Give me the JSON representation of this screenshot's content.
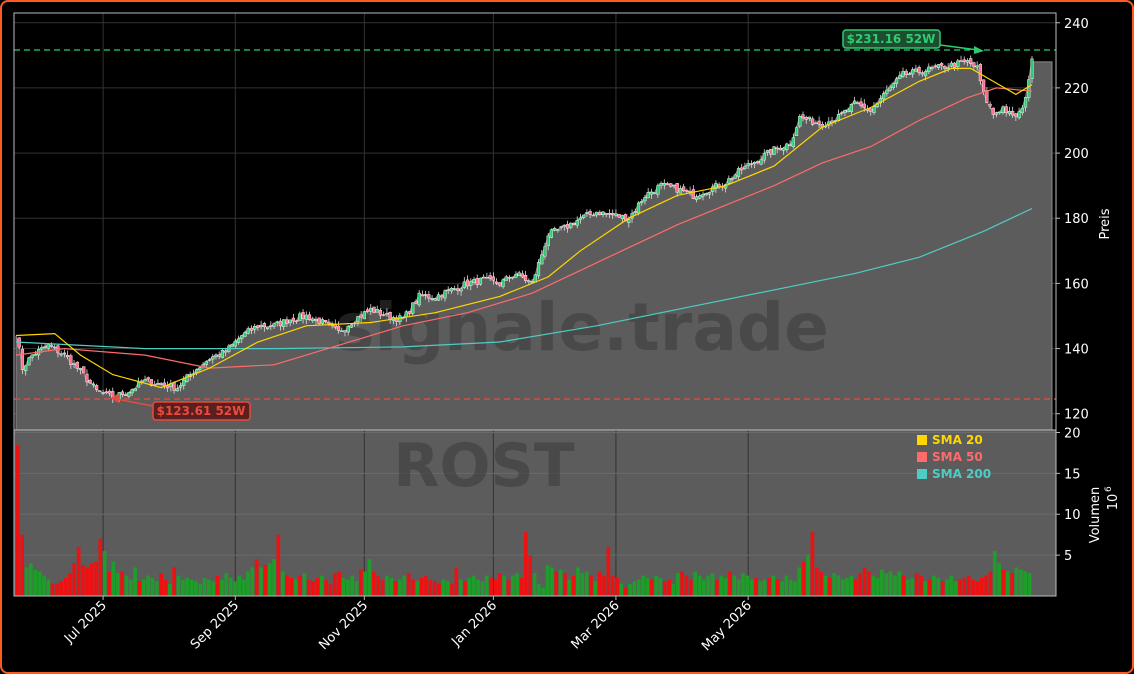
{
  "chart_data": {
    "type": "candlestick",
    "ticker": "ROST",
    "watermark": "signale.trade",
    "ylabel_price": "Preis",
    "ylabel_volume": "Volumen",
    "volume_unit_exp": "6",
    "price_ylim": [
      115,
      243
    ],
    "price_ticks": [
      "120",
      "140",
      "160",
      "180",
      "200",
      "220",
      "240"
    ],
    "volume_ylim": [
      0,
      20
    ],
    "volume_ticks": [
      "5",
      "10",
      "15",
      "20"
    ],
    "x_ticks": [
      "Jul 2025",
      "Sep 2025",
      "Nov 2025",
      "Jan 2026",
      "Mar 2026",
      "May 2026"
    ],
    "high_52w": {
      "value": 231.16,
      "label": "$231.16 52W",
      "color": "#2ecc71"
    },
    "low_52w": {
      "value": 123.61,
      "label": "$123.61 52W",
      "color": "#e74c3c"
    },
    "legend": [
      {
        "label": "SMA 20",
        "color": "#ffd700"
      },
      {
        "label": "SMA 50",
        "color": "#ff6b6b"
      },
      {
        "label": "SMA 200",
        "color": "#4ecdc4"
      }
    ],
    "close_anchors": [
      [
        0,
        145
      ],
      [
        2,
        134
      ],
      [
        5,
        138
      ],
      [
        10,
        141
      ],
      [
        15,
        138
      ],
      [
        20,
        133
      ],
      [
        25,
        127
      ],
      [
        30,
        125
      ],
      [
        35,
        127
      ],
      [
        40,
        130
      ],
      [
        45,
        129
      ],
      [
        50,
        128
      ],
      [
        55,
        133
      ],
      [
        60,
        137
      ],
      [
        65,
        139
      ],
      [
        70,
        144
      ],
      [
        75,
        147
      ],
      [
        80,
        147
      ],
      [
        85,
        149
      ],
      [
        90,
        150
      ],
      [
        95,
        148
      ],
      [
        100,
        145
      ],
      [
        105,
        149
      ],
      [
        110,
        152
      ],
      [
        115,
        150
      ],
      [
        120,
        149
      ],
      [
        125,
        156
      ],
      [
        130,
        156
      ],
      [
        135,
        158
      ],
      [
        140,
        160
      ],
      [
        145,
        161
      ],
      [
        150,
        160
      ],
      [
        155,
        163
      ],
      [
        160,
        160
      ],
      [
        165,
        175
      ],
      [
        170,
        177
      ],
      [
        175,
        180
      ],
      [
        180,
        182
      ],
      [
        185,
        181
      ],
      [
        190,
        180
      ],
      [
        195,
        187
      ],
      [
        200,
        190
      ],
      [
        205,
        189
      ],
      [
        210,
        187
      ],
      [
        215,
        189
      ],
      [
        220,
        191
      ],
      [
        225,
        195
      ],
      [
        230,
        198
      ],
      [
        235,
        201
      ],
      [
        240,
        203
      ],
      [
        243,
        211
      ],
      [
        246,
        210
      ],
      [
        250,
        209
      ],
      [
        255,
        211
      ],
      [
        260,
        215
      ],
      [
        265,
        213
      ],
      [
        270,
        219
      ],
      [
        275,
        224
      ],
      [
        280,
        225
      ],
      [
        285,
        226
      ],
      [
        290,
        227
      ],
      [
        295,
        228
      ],
      [
        298,
        226
      ],
      [
        300,
        218
      ],
      [
        303,
        212
      ],
      [
        306,
        214
      ],
      [
        309,
        211
      ],
      [
        312,
        213
      ],
      [
        315,
        228
      ]
    ],
    "sma20": [
      [
        0,
        144
      ],
      [
        12,
        144.6
      ],
      [
        20,
        138
      ],
      [
        30,
        132
      ],
      [
        45,
        128
      ],
      [
        60,
        134
      ],
      [
        75,
        142
      ],
      [
        90,
        147
      ],
      [
        110,
        148
      ],
      [
        130,
        151
      ],
      [
        150,
        156
      ],
      [
        165,
        162
      ],
      [
        175,
        170
      ],
      [
        190,
        180
      ],
      [
        205,
        187
      ],
      [
        220,
        190
      ],
      [
        235,
        196
      ],
      [
        250,
        208
      ],
      [
        265,
        214
      ],
      [
        280,
        222
      ],
      [
        290,
        226
      ],
      [
        296,
        226
      ],
      [
        303,
        222
      ],
      [
        310,
        218
      ],
      [
        315,
        221
      ]
    ],
    "sma50": [
      [
        0,
        138
      ],
      [
        15,
        140
      ],
      [
        40,
        138
      ],
      [
        60,
        134
      ],
      [
        80,
        135
      ],
      [
        100,
        141
      ],
      [
        120,
        147
      ],
      [
        140,
        151
      ],
      [
        160,
        157
      ],
      [
        175,
        164
      ],
      [
        190,
        171
      ],
      [
        205,
        178
      ],
      [
        220,
        184
      ],
      [
        235,
        190
      ],
      [
        250,
        197
      ],
      [
        265,
        202
      ],
      [
        280,
        210
      ],
      [
        295,
        217
      ],
      [
        304,
        220
      ],
      [
        315,
        219
      ]
    ],
    "sma200": [
      [
        0,
        142
      ],
      [
        40,
        140
      ],
      [
        80,
        140
      ],
      [
        120,
        140.5
      ],
      [
        150,
        142
      ],
      [
        180,
        147
      ],
      [
        210,
        153
      ],
      [
        240,
        159
      ],
      [
        260,
        163
      ],
      [
        280,
        168
      ],
      [
        300,
        176
      ],
      [
        315,
        183
      ]
    ],
    "volume_bars": [
      18.5,
      7.5,
      3.5,
      4.0,
      3.2,
      3.0,
      2.5,
      2.0,
      1.5,
      1.5,
      1.8,
      2.2,
      2.8,
      4.0,
      6.0,
      3.8,
      3.5,
      4.0,
      4.2,
      7.0,
      5.5,
      3.0,
      4.2,
      2.8,
      3.0,
      2.5,
      2.0,
      3.5,
      1.8,
      2.0,
      2.5,
      2.2,
      1.8,
      2.8,
      2.0,
      1.5,
      3.5,
      2.5,
      2.0,
      2.2,
      2.0,
      1.8,
      1.5,
      2.2,
      2.0,
      1.8,
      2.5,
      2.0,
      2.8,
      2.2,
      1.8,
      2.5,
      2.0,
      3.0,
      3.5,
      4.5,
      3.5,
      3.8,
      4.0,
      4.5,
      7.5,
      3.0,
      2.5,
      2.2,
      2.0,
      2.5,
      2.8,
      2.0,
      1.8,
      2.2,
      2.5,
      2.0,
      1.5,
      2.8,
      3.0,
      2.2,
      2.0,
      2.5,
      1.8,
      3.2,
      3.0,
      4.5,
      3.0,
      2.5,
      2.0,
      2.5,
      2.2,
      1.8,
      2.0,
      2.5,
      2.8,
      2.0,
      1.8,
      2.2,
      2.5,
      2.0,
      1.8,
      1.5,
      2.0,
      1.8,
      1.5,
      3.5,
      2.0,
      1.8,
      2.2,
      2.5,
      2.0,
      1.8,
      2.5,
      2.2,
      2.0,
      2.8,
      2.5,
      2.0,
      2.5,
      2.8,
      2.2,
      7.8,
      5.0,
      2.8,
      1.5,
      1.0,
      3.8,
      3.5,
      3.0,
      3.2,
      2.8,
      2.0,
      2.5,
      3.5,
      2.8,
      3.0,
      2.5,
      1.8,
      3.0,
      2.5,
      6.0,
      2.5,
      2.2,
      1.5,
      1.0,
      1.5,
      1.8,
      2.0,
      2.5,
      2.2,
      2.0,
      2.5,
      2.2,
      1.8,
      2.0,
      1.5,
      2.8,
      3.0,
      2.5,
      2.0,
      3.0,
      2.5,
      2.0,
      2.5,
      2.8,
      2.0,
      2.5,
      2.2,
      3.0,
      2.5,
      2.0,
      2.8,
      2.5,
      2.0,
      2.2,
      1.8,
      2.0,
      2.2,
      2.5,
      2.0,
      1.8,
      2.5,
      2.0,
      1.8,
      3.5,
      4.2,
      5.0,
      7.8,
      3.5,
      3.0,
      2.5,
      2.2,
      2.8,
      2.5,
      2.0,
      2.2,
      2.5,
      2.0,
      2.8,
      3.5,
      3.0,
      2.5,
      2.2,
      3.2,
      2.8,
      3.0,
      2.5,
      3.0,
      2.5,
      2.0,
      2.2,
      2.8,
      2.5,
      1.8,
      2.0,
      2.5,
      2.2,
      1.8,
      2.0,
      2.5,
      1.8,
      2.0,
      2.2,
      2.5,
      2.0,
      1.8,
      2.2,
      2.5,
      3.0,
      5.5,
      4.0,
      3.2,
      3.0,
      2.8,
      3.5,
      3.2,
      3.0,
      2.8
    ]
  }
}
